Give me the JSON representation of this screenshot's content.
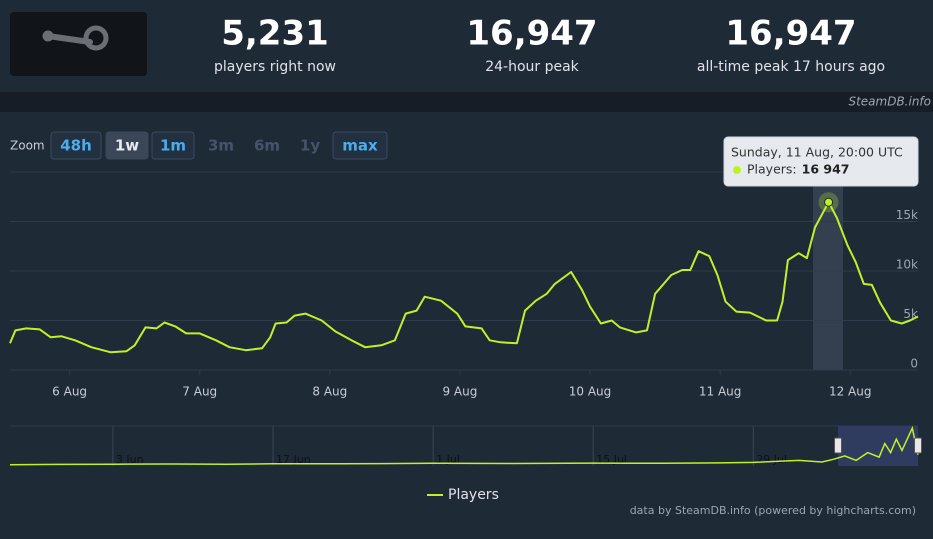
{
  "header": {
    "stats": [
      {
        "value": "5,231",
        "label": "players right now"
      },
      {
        "value": "16,947",
        "label": "24-hour peak"
      },
      {
        "value": "16,947",
        "label": "all-time peak 17 hours ago"
      }
    ],
    "watermark": "SteamDB.info"
  },
  "zoom": {
    "label": "Zoom",
    "buttons": [
      "48h",
      "1w",
      "1m",
      "3m",
      "6m",
      "1y",
      "max"
    ],
    "active": "1w",
    "disabled": [
      "3m",
      "6m",
      "1y"
    ]
  },
  "chart_data": {
    "type": "line",
    "x": [
      -11,
      -10,
      -8,
      -5.5,
      -3.5,
      -1.5,
      1,
      4,
      7.5,
      10.5,
      12,
      14,
      16,
      17.5,
      19.5,
      21.5,
      24,
      27,
      29.5,
      32.5,
      35.5,
      37,
      38,
      40,
      41.5,
      43.5,
      46.5,
      49,
      52,
      54.5,
      57.5,
      60,
      62,
      64,
      65.5,
      68.5,
      71.5,
      73,
      76,
      77.5,
      79.5,
      82.5,
      84,
      86,
      88,
      89.5,
      92.5,
      94.5,
      96,
      98,
      100,
      101.5,
      104.5,
      106.5,
      108,
      111,
      113,
      114.5,
      116,
      118,
      119.5,
      121,
      123,
      125.5,
      128.5,
      130.5,
      131.5,
      132.5,
      134.5,
      136,
      137.5,
      140,
      141.5,
      143.5,
      145,
      146.5,
      148,
      149.5,
      151.5,
      153.5,
      155,
      156.5
    ],
    "series": [
      {
        "name": "Players",
        "color": "#bef227",
        "values": [
          2700,
          4000,
          4200,
          4100,
          3300,
          3400,
          3000,
          2300,
          1800,
          1900,
          2500,
          4300,
          4200,
          4800,
          4400,
          3700,
          3700,
          3000,
          2300,
          2000,
          2200,
          3300,
          4700,
          4800,
          5500,
          5700,
          5000,
          3900,
          3000,
          2300,
          2500,
          3000,
          5700,
          6000,
          7400,
          7000,
          5700,
          4400,
          4200,
          3000,
          2800,
          2700,
          6000,
          7000,
          7700,
          8700,
          9900,
          8100,
          6400,
          4700,
          5000,
          4300,
          3800,
          4000,
          7700,
          9600,
          10100,
          10100,
          12000,
          11500,
          9600,
          6900,
          5900,
          5800,
          5000,
          5000,
          6900,
          11100,
          11800,
          11300,
          14400,
          16947,
          15400,
          12600,
          10900,
          8700,
          8600,
          6800,
          5000,
          4700,
          5000,
          5400
        ]
      }
    ],
    "xlim": [
      -11,
      156.5
    ],
    "xticks": [
      {
        "value": 0,
        "label": "6 Aug"
      },
      {
        "value": 24,
        "label": "7 Aug"
      },
      {
        "value": 48,
        "label": "8 Aug"
      },
      {
        "value": 72,
        "label": "9 Aug"
      },
      {
        "value": 96,
        "label": "10 Aug"
      },
      {
        "value": 120,
        "label": "11 Aug"
      },
      {
        "value": 144,
        "label": "12 Aug"
      }
    ],
    "ylim": [
      0,
      20000
    ],
    "yticks": [
      0,
      {
        "value": 5000,
        "label": "5k"
      },
      {
        "value": 10000,
        "label": "10k"
      },
      {
        "value": 15000,
        "label": "15k"
      }
    ],
    "grid": true,
    "tooltip": {
      "date": "Sunday, 11 Aug, 20:00 UTC",
      "label": "Players:",
      "value_label": "16 947"
    },
    "navigator": {
      "x": [
        -9,
        -5,
        0,
        5,
        10,
        14,
        20,
        25,
        28,
        35,
        42,
        48,
        53,
        56,
        60,
        62,
        63,
        64,
        65,
        66,
        67,
        67.5,
        68,
        68.5,
        69,
        69.9,
        70.4
      ],
      "values": [
        600,
        700,
        800,
        900,
        800,
        1000,
        1000,
        1100,
        1200,
        1100,
        1300,
        1200,
        1400,
        1600,
        2500,
        1800,
        3000,
        4500,
        2500,
        6000,
        4000,
        10000,
        6000,
        12000,
        7000,
        16947,
        5000
      ],
      "xlim": [
        -9,
        70.4
      ],
      "ylim": [
        0,
        17000
      ],
      "xticks": [
        {
          "value": 0,
          "label": "3 Jun"
        },
        {
          "value": 14,
          "label": "17 Jun"
        },
        {
          "value": 28,
          "label": "1 Jul"
        },
        {
          "value": 42,
          "label": "15 Jul"
        },
        {
          "value": 56,
          "label": "29 Jul"
        }
      ]
    },
    "legend": true
  },
  "credits": "data by SteamDB.info (powered by highcharts.com)"
}
